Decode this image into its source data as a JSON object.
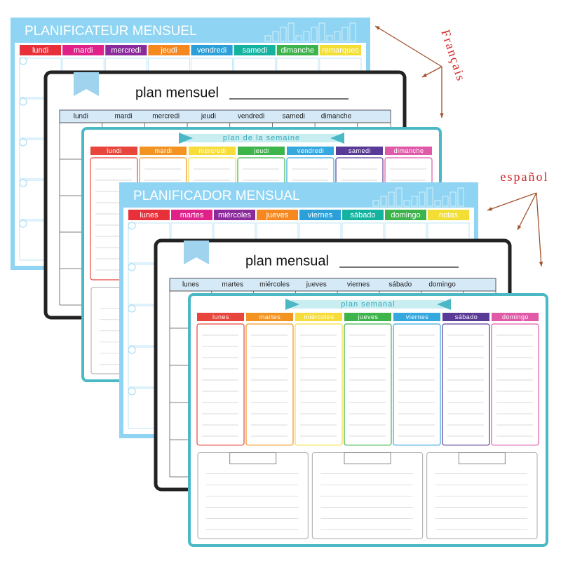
{
  "annotations": {
    "french": "Français",
    "spanish": "español"
  },
  "boards": [
    {
      "title": "PLANIFICATEUR MENSUEL",
      "days": [
        "lundi",
        "mardi",
        "mercredi",
        "jeudi",
        "vendredi",
        "samedi",
        "dimanche",
        "remarques"
      ]
    },
    {
      "title": "plan mensuel",
      "days": [
        "lundi",
        "mardi",
        "mercredi",
        "jeudi",
        "vendredi",
        "samedi",
        "dimanche"
      ]
    },
    {
      "title": "plan de la semaine",
      "days": [
        "lundi",
        "mardi",
        "mercredi",
        "jeudi",
        "vendredi",
        "samedi",
        "dimanche"
      ]
    },
    {
      "title": "PLANIFICADOR MENSUAL",
      "days": [
        "lunes",
        "martes",
        "miércoles",
        "jueves",
        "viernes",
        "sábado",
        "domingo",
        "notas"
      ]
    },
    {
      "title": "plan mensual",
      "days": [
        "lunes",
        "martes",
        "miércoles",
        "jueves",
        "viernes",
        "sábado",
        "domingo"
      ]
    },
    {
      "title": "plan semanal",
      "days": [
        "lunes",
        "martes",
        "miércoles",
        "jueves",
        "viernes",
        "sábado",
        "domingo"
      ]
    }
  ]
}
